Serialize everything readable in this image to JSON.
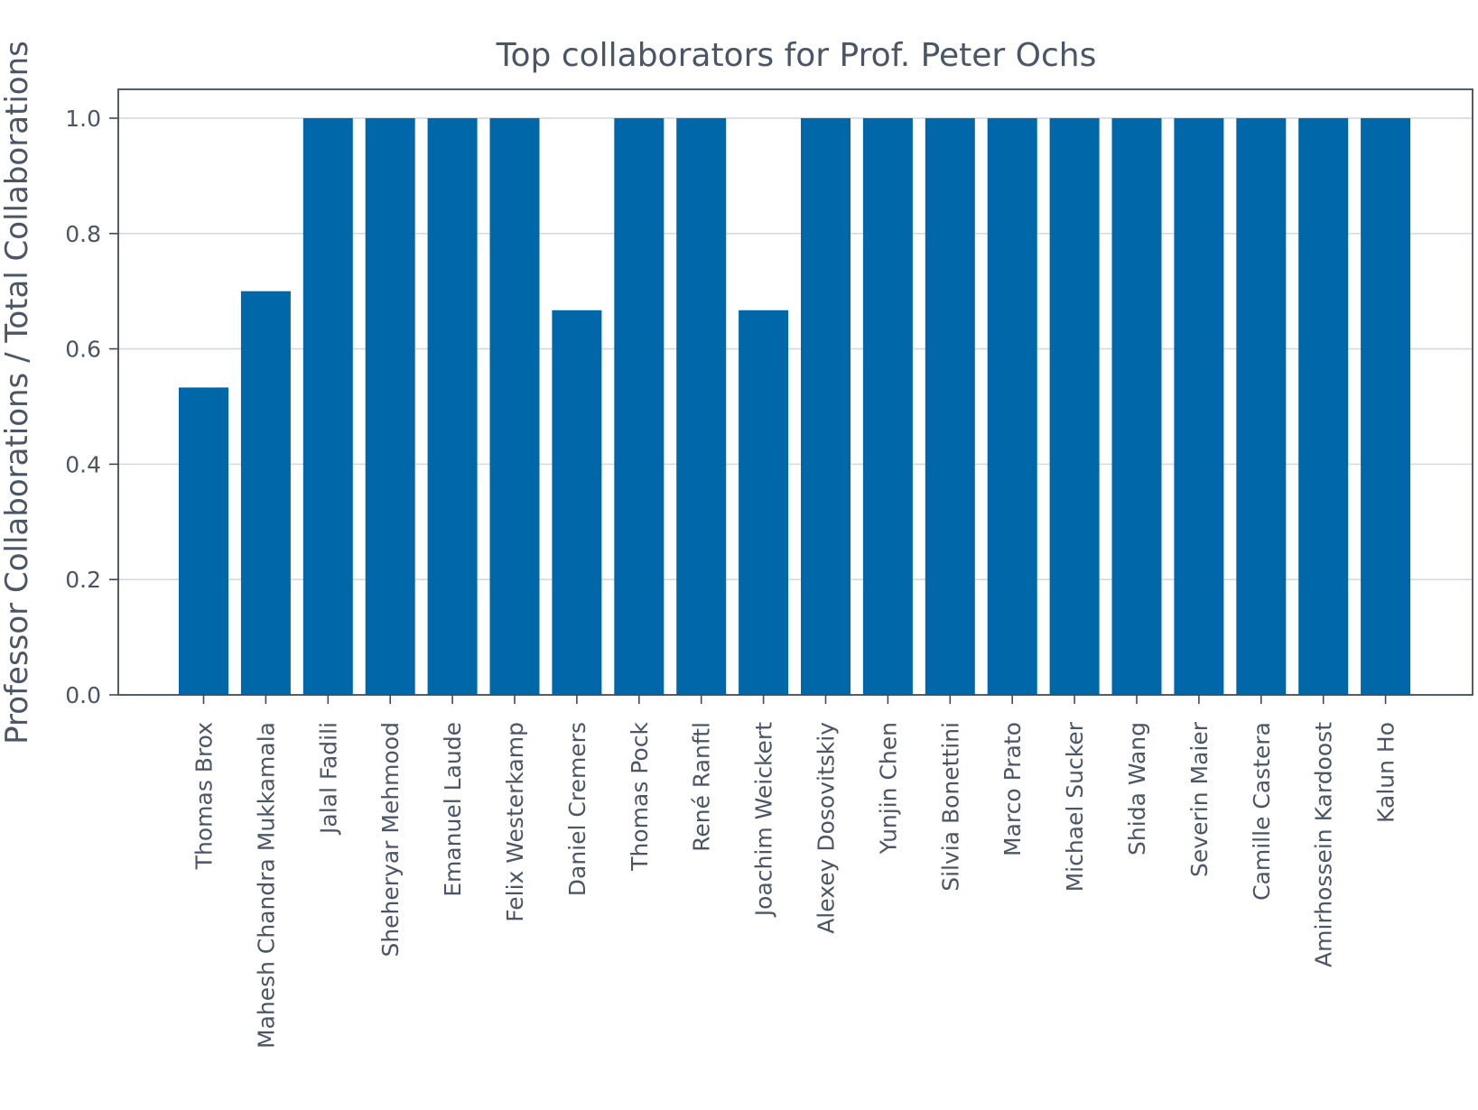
{
  "chart_data": {
    "type": "bar",
    "title": "Top collaborators for Prof. Peter Ochs",
    "xlabel": "",
    "ylabel": "Professor Collaborations / Total Collaborations",
    "ylim": [
      0,
      1.05
    ],
    "yticks": [
      0.0,
      0.2,
      0.4,
      0.6,
      0.8,
      1.0
    ],
    "ytick_labels": [
      "0.0",
      "0.2",
      "0.4",
      "0.6",
      "0.8",
      "1.0"
    ],
    "grid": "horizontal",
    "bar_color": "#0068a8",
    "categories": [
      "Thomas Brox",
      "Mahesh Chandra Mukkamala",
      "Jalal Fadili",
      "Sheheryar Mehmood",
      "Emanuel Laude",
      "Felix Westerkamp",
      "Daniel Cremers",
      "Thomas Pock",
      "René Ranftl",
      "Joachim Weickert",
      "Alexey Dosovitskiy",
      "Yunjin Chen",
      "Silvia Bonettini",
      "Marco Prato",
      "Michael Sucker",
      "Shida Wang",
      "Severin Maier",
      "Camille Castera",
      "Amirhossein Kardoost",
      "Kalun Ho"
    ],
    "values": [
      0.533,
      0.7,
      1.0,
      1.0,
      1.0,
      1.0,
      0.667,
      1.0,
      1.0,
      0.667,
      1.0,
      1.0,
      1.0,
      1.0,
      1.0,
      1.0,
      1.0,
      1.0,
      1.0,
      1.0
    ]
  }
}
